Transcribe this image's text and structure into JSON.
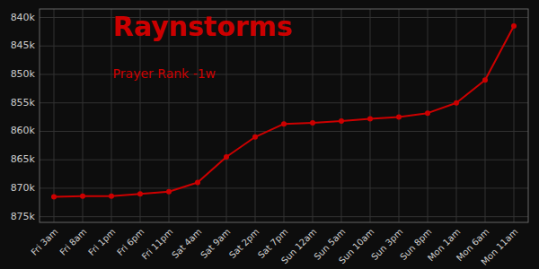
{
  "chart_data": {
    "type": "line",
    "title": "Raynstorms",
    "subtitle": "Prayer Rank -1w",
    "categories": [
      "Fri 3am",
      "Fri 8am",
      "Fri 1pm",
      "Fri 6pm",
      "Fri 11pm",
      "Sat 4am",
      "Sat 9am",
      "Sat 2pm",
      "Sat 7pm",
      "Sun 12am",
      "Sun 5am",
      "Sun 10am",
      "Sun 3pm",
      "Sun 8pm",
      "Mon 1am",
      "Mon 6am",
      "Mon 11am"
    ],
    "values": [
      871500,
      871400,
      871400,
      871000,
      870600,
      869000,
      864500,
      861000,
      858700,
      858500,
      858200,
      857800,
      857500,
      856800,
      855000,
      851000,
      841500
    ],
    "color": "#cc0000",
    "marker": "circle",
    "ylim": [
      876000,
      838500
    ],
    "yticks": [
      {
        "value": 840000,
        "label": "840k"
      },
      {
        "value": 845000,
        "label": "845k"
      },
      {
        "value": 850000,
        "label": "850k"
      },
      {
        "value": 855000,
        "label": "855k"
      },
      {
        "value": 860000,
        "label": "860k"
      },
      {
        "value": 865000,
        "label": "865k"
      },
      {
        "value": 870000,
        "label": "870k"
      },
      {
        "value": 875000,
        "label": "875k"
      }
    ],
    "grid": true
  }
}
